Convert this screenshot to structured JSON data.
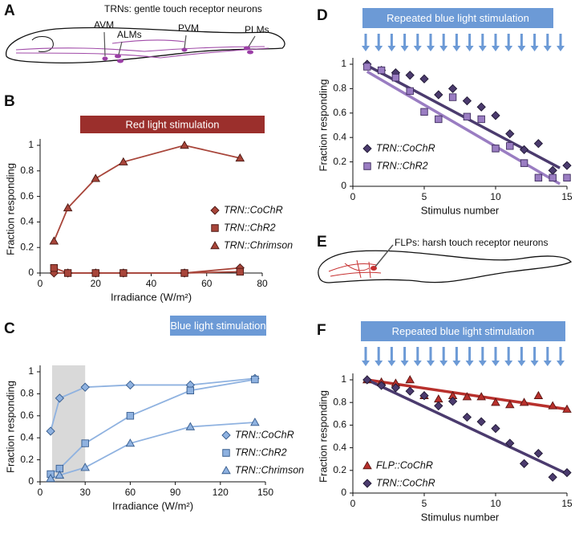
{
  "chart_data": [
    {
      "type": "line",
      "panel": "B",
      "title": "Red light stimulation",
      "title_color": "#9b2f2c",
      "xlabel": "Irradiance (W/m²)",
      "ylabel": "Fraction responding",
      "x": [
        5,
        10,
        20,
        30,
        52,
        72
      ],
      "series": [
        {
          "name": "TRN::CoChR",
          "marker": "diamond",
          "color": "#a8453a",
          "edgecolor": "#4a1712",
          "values": [
            0,
            0,
            0,
            0,
            0,
            0.04
          ]
        },
        {
          "name": "TRN::ChR2",
          "marker": "square",
          "color": "#a8453a",
          "edgecolor": "#4a1712",
          "values": [
            0.04,
            0,
            0,
            0,
            0,
            0.01
          ]
        },
        {
          "name": "TRN::Chrimson",
          "marker": "triangle",
          "color": "#a8453a",
          "edgecolor": "#4a1712",
          "values": [
            0.25,
            0.51,
            0.74,
            0.87,
            1.0,
            0.9
          ]
        }
      ],
      "xlim": [
        0,
        80
      ],
      "xticks": [
        0,
        20,
        40,
        60,
        80
      ],
      "ylim": [
        0,
        1
      ],
      "yticks": [
        0,
        0.2,
        0.4,
        0.6,
        0.8,
        1
      ]
    },
    {
      "type": "line",
      "panel": "C",
      "title": "Blue light stimulation",
      "title_color": "#6c9ad6",
      "xlabel": "Irradiance (W/m²)",
      "ylabel": "Fraction responding",
      "shaded_region": [
        8,
        30
      ],
      "shade_color": "#d9d9d9",
      "x": [
        7,
        13,
        30,
        60,
        100,
        143
      ],
      "series": [
        {
          "name": "TRN::CoChR",
          "marker": "diamond",
          "color": "#8fb2e0",
          "edgecolor": "#345a8c",
          "values": [
            0.46,
            0.76,
            0.86,
            0.88,
            0.88,
            0.94
          ]
        },
        {
          "name": "TRN::ChR2",
          "marker": "square",
          "color": "#8fb2e0",
          "edgecolor": "#345a8c",
          "values": [
            0.07,
            0.12,
            0.35,
            0.6,
            0.83,
            0.93
          ]
        },
        {
          "name": "TRN::Chrimson",
          "marker": "triangle",
          "color": "#8fb2e0",
          "edgecolor": "#345a8c",
          "values": [
            0.03,
            0.06,
            0.13,
            0.35,
            0.5,
            0.54
          ]
        }
      ],
      "xlim": [
        0,
        150
      ],
      "xticks": [
        0,
        30,
        60,
        90,
        120,
        150
      ],
      "ylim": [
        0,
        1
      ],
      "yticks": [
        0,
        0.2,
        0.4,
        0.6,
        0.8,
        1
      ]
    },
    {
      "type": "scatter",
      "panel": "D",
      "title": "Repeated blue light stimulation",
      "title_color": "#6c9ad6",
      "xlabel": "Stimulus number",
      "ylabel": "Fraction responding",
      "x": [
        1,
        2,
        3,
        4,
        5,
        6,
        7,
        8,
        9,
        10,
        11,
        12,
        13,
        14,
        15
      ],
      "series": [
        {
          "name": "TRN::CoChR",
          "marker": "diamond",
          "color": "#4b3b6e",
          "edgecolor": "#1f1733",
          "values": [
            1.0,
            0.95,
            0.93,
            0.91,
            0.88,
            0.75,
            0.8,
            0.7,
            0.65,
            0.58,
            0.43,
            0.3,
            0.35,
            0.13,
            0.17
          ],
          "fit": {
            "x": [
              1,
              14.5
            ],
            "y": [
              0.99,
              0.15
            ]
          }
        },
        {
          "name": "TRN::ChR2",
          "marker": "square",
          "color": "#9a7dc2",
          "edgecolor": "#3e2c5e",
          "values": [
            0.98,
            0.95,
            0.89,
            0.78,
            0.61,
            0.55,
            0.73,
            0.57,
            0.55,
            0.31,
            0.33,
            0.19,
            0.07,
            0.07,
            0.07
          ],
          "fit": {
            "x": [
              1,
              14.5
            ],
            "y": [
              0.94,
              0.02
            ]
          }
        }
      ],
      "xlim": [
        0,
        15
      ],
      "xticks": [
        0,
        5,
        10,
        15
      ],
      "ylim": [
        0,
        1
      ],
      "yticks": [
        0,
        0.2,
        0.4,
        0.6,
        0.8,
        1
      ]
    },
    {
      "type": "scatter",
      "panel": "F",
      "title": "Repeated blue light stimulation",
      "title_color": "#6c9ad6",
      "xlabel": "Stimulus number",
      "ylabel": "Fraction responding",
      "x": [
        1,
        2,
        3,
        4,
        5,
        6,
        7,
        8,
        9,
        10,
        11,
        12,
        13,
        14,
        15
      ],
      "series": [
        {
          "name": "FLP::CoChR",
          "marker": "triangle",
          "color": "#b8302c",
          "edgecolor": "#5a1512",
          "values": [
            1.0,
            0.98,
            0.97,
            1.0,
            0.86,
            0.83,
            0.86,
            0.85,
            0.85,
            0.8,
            0.78,
            0.8,
            0.86,
            0.77,
            0.74
          ],
          "fit": {
            "x": [
              1,
              15
            ],
            "y": [
              1.0,
              0.74
            ]
          }
        },
        {
          "name": "TRN::CoChR",
          "marker": "diamond",
          "color": "#4b3b6e",
          "edgecolor": "#1f1733",
          "values": [
            1.0,
            0.95,
            0.93,
            0.9,
            0.86,
            0.77,
            0.81,
            0.67,
            0.63,
            0.57,
            0.44,
            0.26,
            0.35,
            0.14,
            0.18
          ],
          "fit": {
            "x": [
              1,
              15
            ],
            "y": [
              1.0,
              0.17
            ]
          }
        }
      ],
      "xlim": [
        0,
        15
      ],
      "xticks": [
        0,
        5,
        10,
        15
      ],
      "ylim": [
        0,
        1
      ],
      "yticks": [
        0,
        0.2,
        0.4,
        0.6,
        0.8,
        1
      ]
    }
  ],
  "diagrams": {
    "A": {
      "panel": "A",
      "title": "TRNs: gentle touch receptor neurons",
      "labels": [
        "AVM",
        "ALMs",
        "PVM",
        "PLMs"
      ]
    },
    "E": {
      "panel": "E",
      "title": "FLPs: harsh touch receptor neurons"
    }
  }
}
